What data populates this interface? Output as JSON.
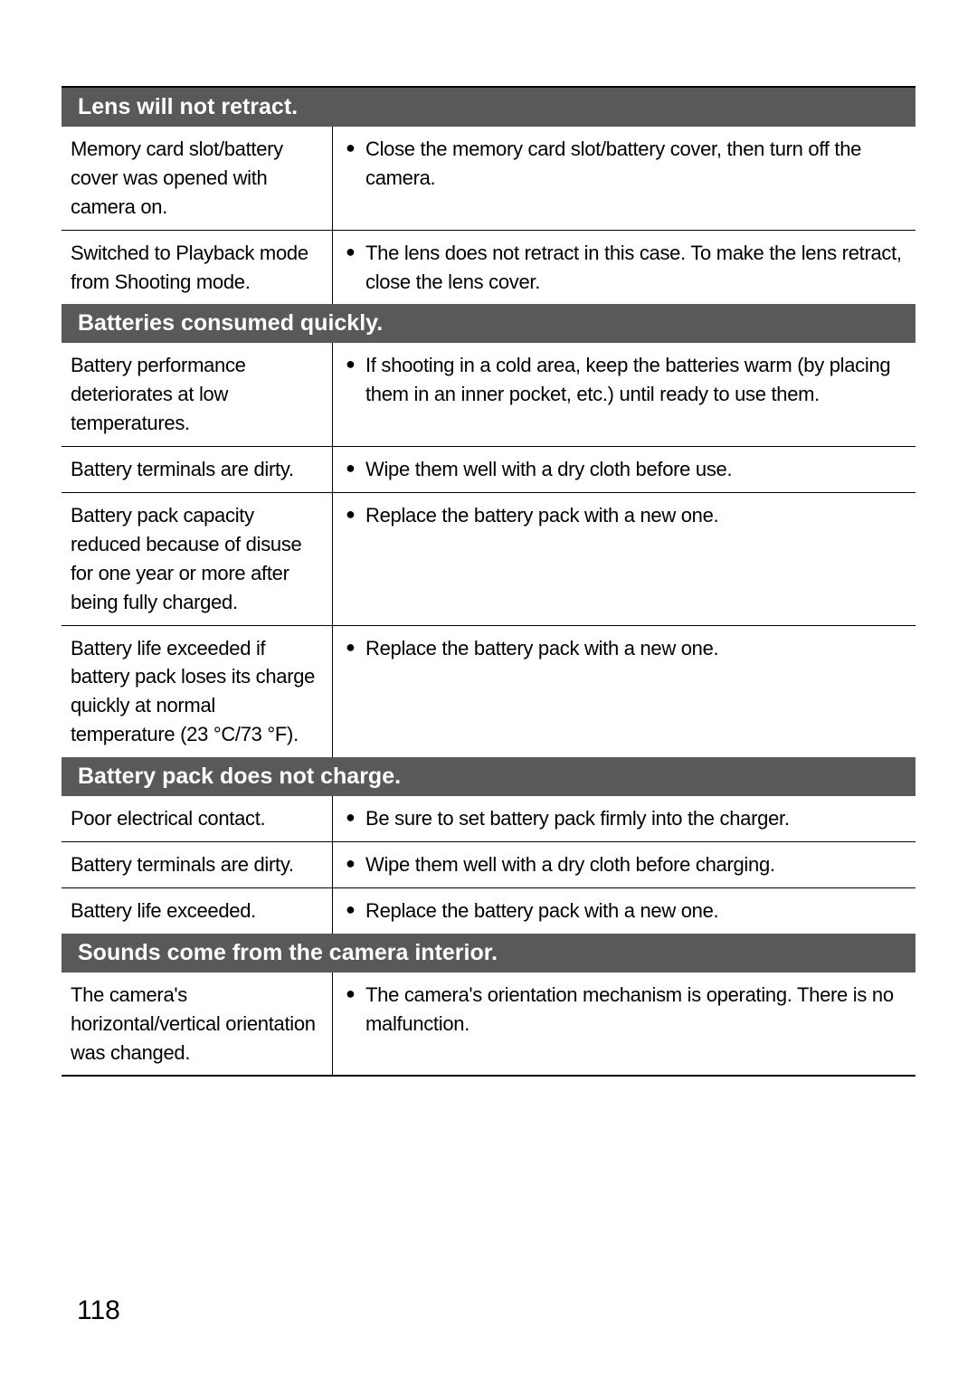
{
  "sections": [
    {
      "header": "Lens will not retract.",
      "rows": [
        {
          "left": "Memory card slot/battery cover was opened with camera on.",
          "right": "Close the memory card slot/battery cover, then turn off the camera.",
          "lastInSection": false
        },
        {
          "left": "Switched to Playback mode from Shooting mode.",
          "right": "The lens does not retract in this case. To make the lens retract, close the lens cover.",
          "lastInSection": true
        }
      ]
    },
    {
      "header": "Batteries consumed quickly.",
      "rows": [
        {
          "left": "Battery performance deteriorates at low temperatures.",
          "right": "If shooting in a cold area, keep the batteries warm (by placing them in an inner pocket, etc.) until ready to use them.",
          "lastInSection": false
        },
        {
          "left": "Battery terminals are dirty.",
          "right": "Wipe them well with a dry cloth before use.",
          "lastInSection": false
        },
        {
          "left": "Battery pack capacity reduced because of disuse for one year or more after being fully charged.",
          "right": "Replace the battery pack with a new one.",
          "lastInSection": false
        },
        {
          "left": "Battery life exceeded if battery pack loses its charge quickly at normal temperature (23 °C/73 °F).",
          "right": "Replace the battery pack with a new one.",
          "lastInSection": true
        }
      ]
    },
    {
      "header": "Battery pack does not charge.",
      "rows": [
        {
          "left": "Poor electrical contact.",
          "right": "Be sure to set battery pack firmly into the charger.",
          "lastInSection": false
        },
        {
          "left": "Battery terminals are dirty.",
          "right": "Wipe them well with a dry cloth before charging.",
          "lastInSection": false
        },
        {
          "left": "Battery life exceeded.",
          "right": "Replace the battery pack with a new one.",
          "lastInSection": true
        }
      ]
    },
    {
      "header": "Sounds come from the camera interior.",
      "rows": [
        {
          "left": "The camera's horizontal/vertical orientation was changed.",
          "right": "The camera's orientation mechanism is operating. There is no malfunction.",
          "lastInSection": true
        }
      ]
    }
  ],
  "page_number": "118",
  "colors": {
    "header_bg": "#595959",
    "header_text": "#ffffff",
    "body_text": "#000000",
    "border": "#000000",
    "page_bg": "#ffffff"
  },
  "typography": {
    "header_fontsize": 25,
    "body_fontsize": 22,
    "page_number_fontsize": 30
  }
}
